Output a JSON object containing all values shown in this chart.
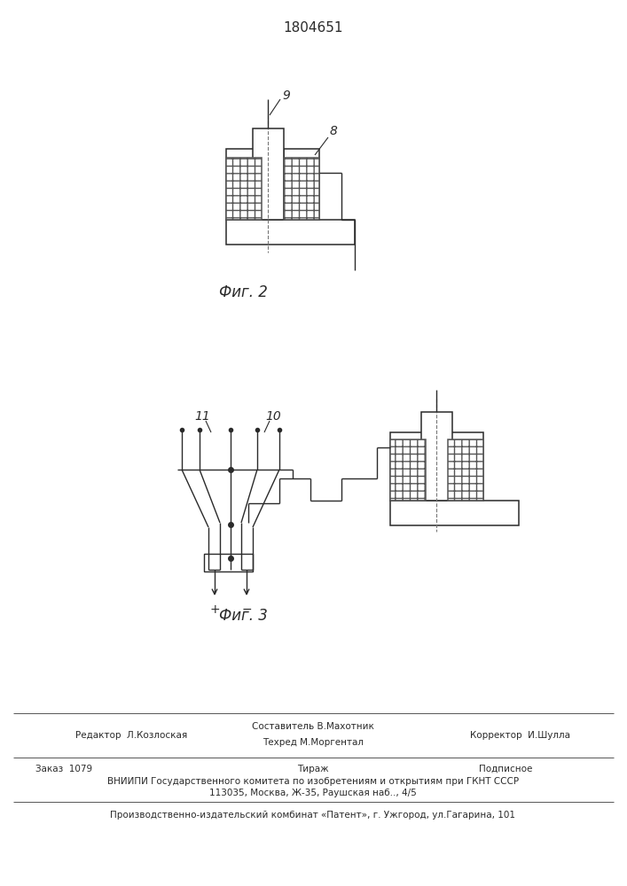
{
  "title": "1804651",
  "fig2_label": "Фиг. 2",
  "fig3_label": "Фиг. 3",
  "line_color": "#2a2a2a",
  "footer_lines": [
    "Составитель В.Махотник",
    "Техред М.Моргентал",
    "Редактор  Л.Козлоская",
    "Корректор  И.Шулла",
    "Заказ  1079",
    "Тираж",
    "Подписное",
    "ВНИИПИ Государственного комитета по изобретениям и открытиям при ГКНТ СССР",
    "113035, Москва, Ж-35, Раушская наб.., 4/5",
    "Производственно-издательский комбинат «Патент», г. Ужгород, ул.Гагарина, 101"
  ]
}
